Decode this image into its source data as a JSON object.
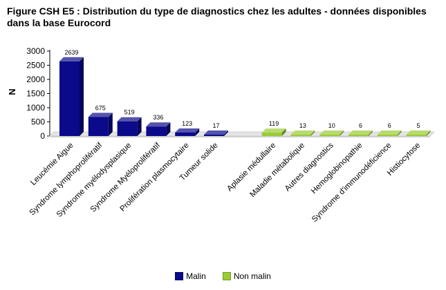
{
  "title": "Figure CSH E5 : Distribution du type de diagnostics chez les adultes - données disponibles dans la base Eurocord",
  "chart_data": {
    "type": "bar",
    "title": "Figure CSH E5 : Distribution du type de diagnostics chez les adultes - données disponibles dans la base Eurocord",
    "ylabel": "N",
    "xlabel": "",
    "ylim": [
      0,
      3000
    ],
    "yticks": [
      0,
      500,
      1000,
      1500,
      2000,
      2500,
      3000
    ],
    "grid": false,
    "legend_position": "bottom",
    "series": [
      {
        "name": "Malin",
        "color": "#0a0a8a",
        "categories": [
          "Leucémie Aigue",
          "Syndrome lymphoprolifératif",
          "Syndrome myélodysplasique",
          "Syndrome Myéloprolifératif",
          "Prolifération plasmocytaire",
          "Tumeur solide"
        ],
        "values": [
          2639,
          675,
          519,
          336,
          123,
          17
        ]
      },
      {
        "name": "Non malin",
        "color": "#99cc33",
        "categories": [
          "Aplasie médullaire",
          "Maladie métabolique",
          "Autres diagnostics",
          "Hemoglobinopathie",
          "Syndrome d'immunodéficience",
          "Histiocytose"
        ],
        "values": [
          119,
          13,
          10,
          6,
          6,
          5
        ]
      }
    ]
  }
}
